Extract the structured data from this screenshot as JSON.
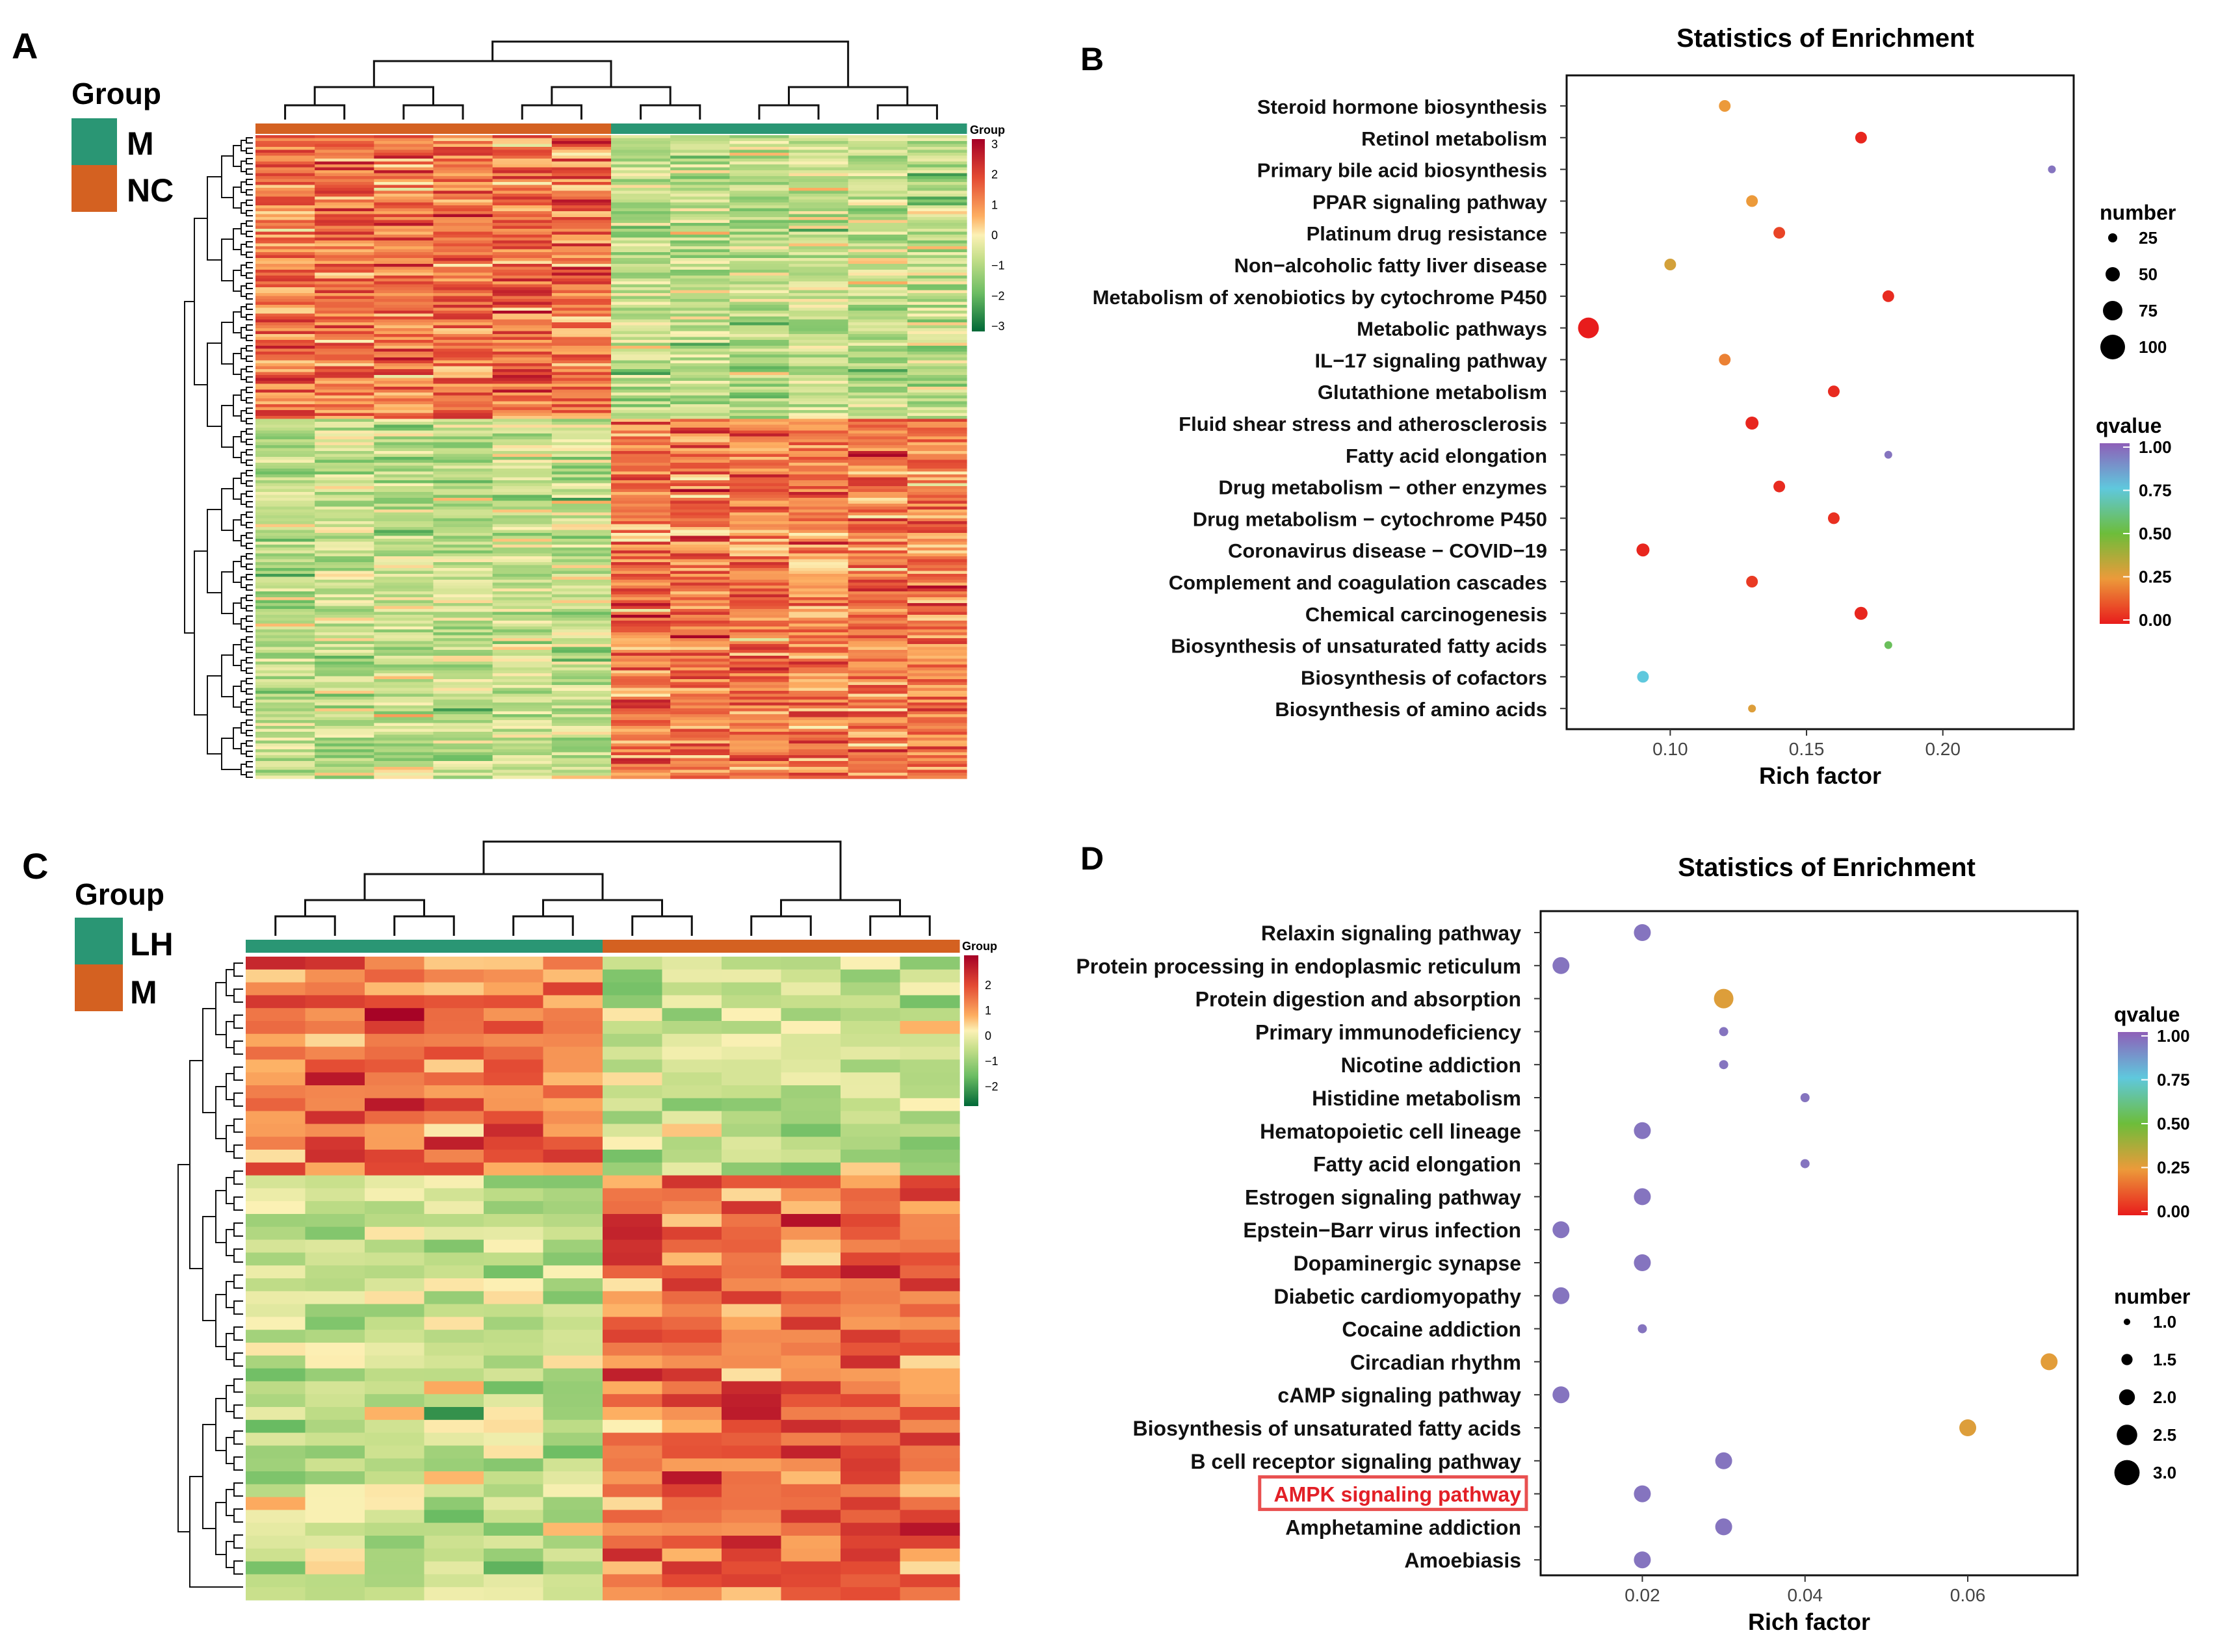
{
  "panels": {
    "A": {
      "letter": "A",
      "group_title": "Group",
      "groups": [
        {
          "label": "M",
          "color": "#2a9674"
        },
        {
          "label": "NC",
          "color": "#d46121"
        }
      ],
      "column_groups": [
        "NC",
        "NC",
        "NC",
        "NC",
        "NC",
        "NC",
        "M",
        "M",
        "M",
        "M",
        "M",
        "M"
      ],
      "scale_title": "Group",
      "scale_ticks": [
        "3",
        "2",
        "1",
        "0",
        "−1",
        "−2",
        "−3"
      ],
      "scale_range": [
        -3,
        3
      ],
      "row_count": 220
    },
    "B": {
      "letter": "B",
      "title": "Statistics of Enrichment"
    },
    "C": {
      "letter": "C",
      "group_title": "Group",
      "groups": [
        {
          "label": "LH",
          "color": "#2a9674"
        },
        {
          "label": "M",
          "color": "#d46121"
        }
      ],
      "column_groups": [
        "LH",
        "LH",
        "LH",
        "LH",
        "LH",
        "LH",
        "M",
        "M",
        "M",
        "M",
        "M",
        "M"
      ],
      "scale_title": "Group",
      "scale_ticks": [
        "2",
        "1",
        "0",
        "−1",
        "−2"
      ],
      "scale_range": [
        -2.5,
        2.5
      ],
      "row_count": 50
    },
    "D": {
      "letter": "D",
      "title": "Statistics of Enrichment"
    }
  },
  "chart_data": [
    {
      "type": "scatter",
      "panel": "B",
      "title": "Statistics of Enrichment",
      "xlabel": "Rich factor",
      "ylabel": "",
      "xlim": [
        0.062,
        0.248
      ],
      "xticks": [
        0.1,
        0.15,
        0.2
      ],
      "xtick_labels": [
        "0.10",
        "0.15",
        "0.20"
      ],
      "categories": [
        "Steroid hormone biosynthesis",
        "Retinol metabolism",
        "Primary bile acid biosynthesis",
        "PPAR signaling pathway",
        "Platinum drug resistance",
        "Non−alcoholic fatty liver disease",
        "Metabolism of xenobiotics by cytochrome P450",
        "Metabolic pathways",
        "IL−17 signaling pathway",
        "Glutathione metabolism",
        "Fluid shear stress and atherosclerosis",
        "Fatty acid elongation",
        "Drug metabolism − other enzymes",
        "Drug metabolism − cytochrome P450",
        "Coronavirus disease − COVID−19",
        "Complement and coagulation cascades",
        "Chemical carcinogenesis",
        "Biosynthesis of unsaturated fatty acids",
        "Biosynthesis of cofactors",
        "Biosynthesis of amino acids"
      ],
      "rich_factor": [
        0.12,
        0.17,
        0.24,
        0.13,
        0.14,
        0.1,
        0.18,
        0.07,
        0.12,
        0.16,
        0.13,
        0.18,
        0.14,
        0.16,
        0.09,
        0.13,
        0.17,
        0.18,
        0.09,
        0.13
      ],
      "number": [
        6,
        8,
        3,
        6,
        6,
        6,
        8,
        38,
        6,
        7,
        9,
        4,
        7,
        7,
        11,
        6,
        9,
        4,
        6,
        5
      ],
      "qvalue": [
        0.25,
        0.02,
        0.95,
        0.25,
        0.08,
        0.3,
        0.03,
        0.0,
        0.2,
        0.03,
        0.02,
        0.95,
        0.03,
        0.04,
        0.02,
        0.06,
        0.02,
        0.55,
        0.75,
        0.28
      ],
      "size_legend": {
        "title": "number",
        "values": [
          25,
          50,
          75,
          100
        ]
      },
      "color_legend": {
        "title": "qvalue",
        "ticks": [
          "1.00",
          "0.75",
          "0.50",
          "0.25",
          "0.00"
        ]
      }
    },
    {
      "type": "scatter",
      "panel": "D",
      "title": "Statistics of Enrichment",
      "xlabel": "Rich factor",
      "ylabel": "",
      "xlim": [
        0.0075,
        0.0735
      ],
      "xticks": [
        0.02,
        0.04,
        0.06
      ],
      "xtick_labels": [
        "0.02",
        "0.04",
        "0.06"
      ],
      "categories": [
        "Relaxin signaling pathway",
        "Protein processing in endoplasmic reticulum",
        "Protein digestion and absorption",
        "Primary immunodeficiency",
        "Nicotine addiction",
        "Histidine metabolism",
        "Hematopoietic cell lineage",
        "Fatty acid elongation",
        "Estrogen signaling pathway",
        "Epstein−Barr virus infection",
        "Dopaminergic synapse",
        "Diabetic cardiomyopathy",
        "Cocaine addiction",
        "Circadian rhythm",
        "cAMP signaling pathway",
        "Biosynthesis of unsaturated fatty acids",
        "B cell receptor signaling pathway",
        "AMPK signaling pathway",
        "Amphetamine addiction",
        "Amoebiasis"
      ],
      "highlighted": "AMPK signaling pathway",
      "rich_factor": [
        0.02,
        0.01,
        0.03,
        0.03,
        0.03,
        0.04,
        0.02,
        0.04,
        0.02,
        0.01,
        0.02,
        0.01,
        0.02,
        0.07,
        0.01,
        0.06,
        0.03,
        0.02,
        0.03,
        0.02
      ],
      "number": [
        2,
        2,
        3,
        1,
        1,
        1,
        2,
        1,
        2,
        2,
        2,
        2,
        1,
        2,
        2,
        2,
        2,
        2,
        2,
        2
      ],
      "qvalue": [
        0.95,
        0.95,
        0.28,
        0.95,
        0.95,
        0.95,
        0.95,
        0.95,
        0.95,
        0.95,
        0.95,
        0.95,
        0.95,
        0.27,
        0.95,
        0.28,
        0.95,
        0.95,
        0.95,
        0.95
      ],
      "size_legend": {
        "title": "number",
        "values": [
          "1.0",
          "1.5",
          "2.0",
          "2.5",
          "3.0"
        ]
      },
      "color_legend": {
        "title": "qvalue",
        "ticks": [
          "1.00",
          "0.75",
          "0.50",
          "0.25",
          "0.00"
        ]
      }
    }
  ]
}
